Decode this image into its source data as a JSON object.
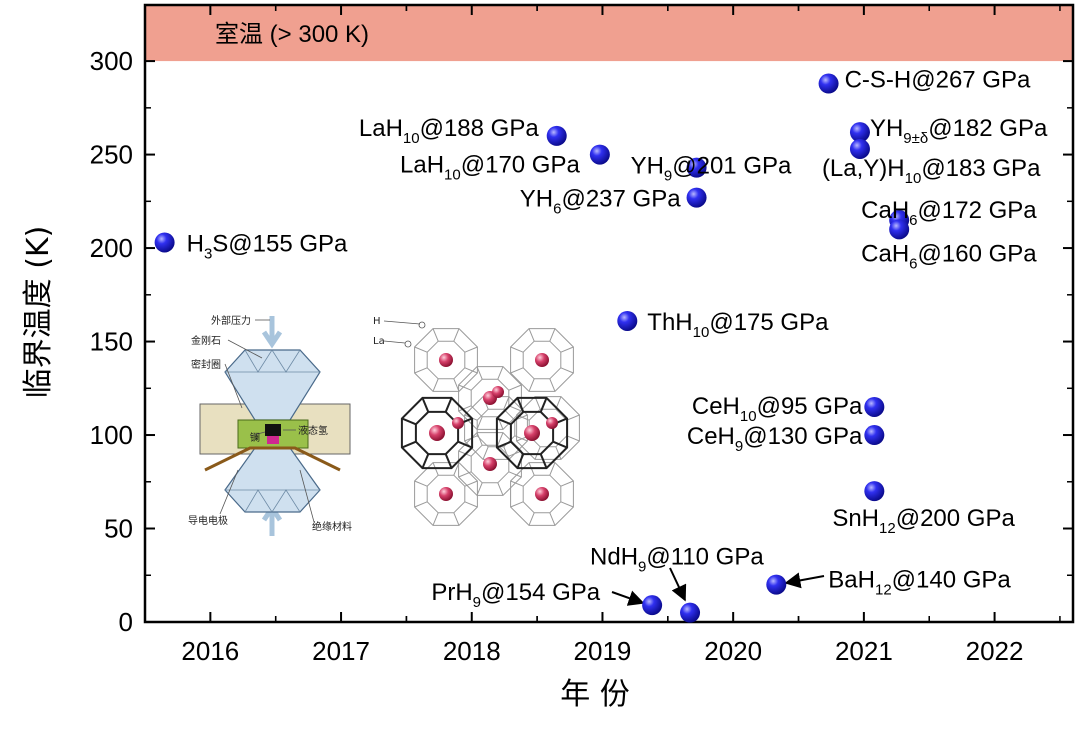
{
  "chart_data": {
    "type": "scatter",
    "title": "",
    "xlabel": "年 份",
    "ylabel": "临界温度 (K)",
    "xlim": [
      2015.5,
      2022.6
    ],
    "ylim": [
      0,
      330
    ],
    "xticks": [
      2016,
      2017,
      2018,
      2019,
      2020,
      2021,
      2022
    ],
    "yticks": [
      0,
      50,
      100,
      150,
      200,
      250,
      300
    ],
    "band": {
      "label": "室温 (> 300 K)",
      "y_from": 300,
      "y_to": 330,
      "color": "#f0a090"
    },
    "marker_color": "#1a1adc",
    "points": [
      {
        "x": 2015.65,
        "y": 203,
        "label": "H3S@155 GPa",
        "compound": {
          "base": "H",
          "sub": "3",
          "rest": "S"
        },
        "pressure": "@155 GPa"
      },
      {
        "x": 2018.65,
        "y": 260,
        "label": "LaH10@188 GPa",
        "compound": {
          "base": "LaH",
          "sub": "10",
          "rest": ""
        },
        "pressure": "@188 GPa"
      },
      {
        "x": 2018.98,
        "y": 250,
        "label": "LaH10@170 GPa",
        "compound": {
          "base": "LaH",
          "sub": "10",
          "rest": ""
        },
        "pressure": "@170 GPa"
      },
      {
        "x": 2019.72,
        "y": 243,
        "label": "YH9@201 GPa",
        "compound": {
          "base": "YH",
          "sub": "9",
          "rest": ""
        },
        "pressure": "@201 GPa"
      },
      {
        "x": 2019.72,
        "y": 227,
        "label": "YH6@237 GPa",
        "compound": {
          "base": "YH",
          "sub": "6",
          "rest": ""
        },
        "pressure": "@237 GPa"
      },
      {
        "x": 2019.19,
        "y": 161,
        "label": "ThH10@175 GPa",
        "compound": {
          "base": "ThH",
          "sub": "10",
          "rest": ""
        },
        "pressure": "@175 GPa"
      },
      {
        "x": 2020.73,
        "y": 288,
        "label": "C-S-H@267 GPa",
        "compound": {
          "base": "C-S-H",
          "sub": "",
          "rest": ""
        },
        "pressure": "@267 GPa"
      },
      {
        "x": 2020.97,
        "y": 262,
        "label": "YH9±δ@182 GPa",
        "compound": {
          "base": "YH",
          "sub": "9±δ",
          "rest": ""
        },
        "pressure": "@182 GPa"
      },
      {
        "x": 2020.97,
        "y": 253,
        "label": "(La,Y)H10@183 GPa",
        "compound": {
          "base": "(La,Y)H",
          "sub": "10",
          "rest": ""
        },
        "pressure": "@183 GPa"
      },
      {
        "x": 2021.27,
        "y": 215,
        "label": "CaH6@172 GPa",
        "compound": {
          "base": "CaH",
          "sub": "6",
          "rest": ""
        },
        "pressure": "@172 GPa"
      },
      {
        "x": 2021.27,
        "y": 210,
        "label": "CaH6@160 GPa",
        "compound": {
          "base": "CaH",
          "sub": "6",
          "rest": ""
        },
        "pressure": "@160 GPa"
      },
      {
        "x": 2021.08,
        "y": 115,
        "label": "CeH10@95 GPa",
        "compound": {
          "base": "CeH",
          "sub": "10",
          "rest": ""
        },
        "pressure": "@95 GPa"
      },
      {
        "x": 2021.08,
        "y": 100,
        "label": "CeH9@130 GPa",
        "compound": {
          "base": "CeH",
          "sub": "9",
          "rest": ""
        },
        "pressure": "@130 GPa"
      },
      {
        "x": 2021.08,
        "y": 70,
        "label": "SnH12@200 GPa",
        "compound": {
          "base": "SnH",
          "sub": "12",
          "rest": ""
        },
        "pressure": "@200 GPa"
      },
      {
        "x": 2020.33,
        "y": 20,
        "label": "BaH12@140 GPa",
        "compound": {
          "base": "BaH",
          "sub": "12",
          "rest": ""
        },
        "pressure": "@140 GPa"
      },
      {
        "x": 2019.38,
        "y": 9,
        "label": "PrH9@154 GPa",
        "compound": {
          "base": "PrH",
          "sub": "9",
          "rest": ""
        },
        "pressure": "@154 GPa"
      },
      {
        "x": 2019.67,
        "y": 5,
        "label": "NdH9@110 GPa",
        "compound": {
          "base": "NdH",
          "sub": "9",
          "rest": ""
        },
        "pressure": "@110 GPa"
      }
    ]
  },
  "inset_cell": {
    "labels": {
      "force": "外部压力",
      "diamond": "金刚石",
      "gasket": "密封圈",
      "sample": "镧",
      "liquid": "液态氢",
      "electrode": "导电电极",
      "insulator": "绝缘材料"
    }
  },
  "inset_structure": {
    "legend": [
      "H",
      "La"
    ]
  }
}
